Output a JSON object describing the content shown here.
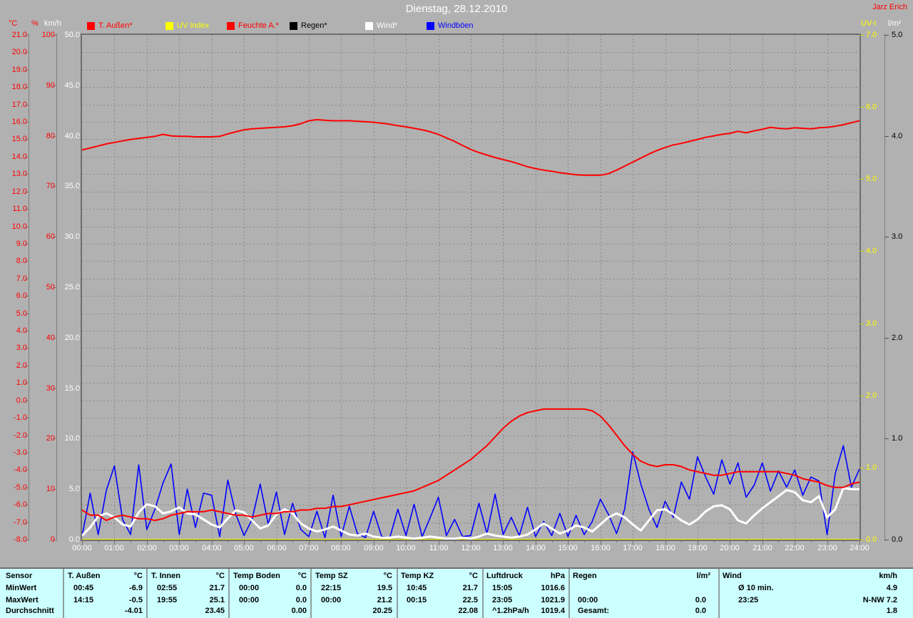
{
  "header": {
    "title": "Dienstag, 28.12.2010",
    "watermark": "Jarz Erich"
  },
  "legend": [
    {
      "label": "T. Außen*",
      "color": "#ff0000"
    },
    {
      "label": "UV Index",
      "color": "#ffff00"
    },
    {
      "label": "Feuchte A.*",
      "color": "#ff0000"
    },
    {
      "label": "Regen*",
      "color": "#000000"
    },
    {
      "label": "Wind*",
      "color": "#ffffff"
    },
    {
      "label": "Windböen",
      "color": "#0000ff"
    }
  ],
  "chart_data": {
    "type": "line",
    "title": "Dienstag, 28.12.2010",
    "x_axis": {
      "start": 0,
      "end": 24,
      "major_step": 1,
      "minor_step": 0.5,
      "label_suffix": ":00",
      "label_color": "#ffffff"
    },
    "grid": {
      "on": true,
      "color": "#8a8a8a",
      "h_divisions": 29,
      "v_divisions": 24
    },
    "axes": {
      "temp": {
        "unit": "°C",
        "min": -8,
        "max": 21,
        "step": 1,
        "decimals": 1,
        "color": "#ff0000"
      },
      "pct": {
        "unit": "%",
        "min": 0,
        "max": 100,
        "step": 10,
        "decimals": 0,
        "color": "#ff0000"
      },
      "kmh": {
        "unit": "km/h",
        "min": 0,
        "max": 50,
        "step": 5,
        "decimals": 1,
        "color": "#ffffff"
      },
      "uv": {
        "unit": "UV-I",
        "min": 0,
        "max": 7,
        "step": 1,
        "decimals": 1,
        "color": "#ffff00"
      },
      "lm2": {
        "unit": "l/m²",
        "min": 0,
        "max": 5,
        "step": 1,
        "decimals": 1,
        "color": "#000000"
      }
    },
    "series": [
      {
        "name": "Regen",
        "axis": "lm2",
        "color": "#000000",
        "width": 1.5,
        "start": 0,
        "step": 24,
        "values": [
          0,
          0
        ]
      },
      {
        "name": "UV Index",
        "axis": "uv",
        "color": "#ffff00",
        "width": 2,
        "start": 0,
        "step": 24,
        "values": [
          0,
          0
        ]
      },
      {
        "name": "Windböen",
        "axis": "kmh",
        "color": "#0000ff",
        "width": 1.6,
        "start": 0,
        "step": 0.25,
        "values": [
          0.3,
          4.6,
          0.5,
          4.9,
          7.3,
          2.0,
          0.5,
          7.4,
          1.0,
          3.0,
          5.6,
          7.5,
          0.5,
          5.0,
          1.2,
          4.6,
          4.4,
          0.3,
          5.9,
          2.5,
          0.4,
          2.0,
          5.5,
          1.5,
          4.7,
          0.5,
          3.6,
          1.0,
          0.3,
          2.8,
          0.2,
          4.4,
          0.3,
          3.3,
          0.6,
          0.2,
          2.8,
          0.3,
          0.2,
          3.0,
          0.4,
          3.5,
          0.3,
          2.2,
          4.2,
          0.4,
          2.0,
          0.3,
          0.4,
          3.6,
          0.6,
          4.5,
          0.5,
          2.2,
          0.4,
          3.2,
          0.3,
          1.8,
          0.4,
          2.6,
          0.3,
          2.4,
          0.5,
          1.8,
          4.0,
          2.5,
          0.6,
          3.0,
          8.7,
          5.5,
          3.0,
          1.2,
          3.8,
          2.2,
          5.7,
          4.0,
          8.2,
          6.2,
          4.5,
          7.9,
          5.5,
          7.6,
          4.2,
          5.4,
          7.6,
          4.8,
          6.8,
          5.2,
          6.9,
          4.4,
          6.2,
          5.8,
          0.5,
          6.5,
          9.3,
          5.2,
          7.0
        ]
      },
      {
        "name": "Wind",
        "axis": "kmh",
        "color": "#ffffff",
        "width": 3,
        "start": 0,
        "step": 0.25,
        "values": [
          0.4,
          1.2,
          2.3,
          2.6,
          2.2,
          1.5,
          1.3,
          2.7,
          3.5,
          3.3,
          2.6,
          2.8,
          3.2,
          2.6,
          2.5,
          2.0,
          1.5,
          1.2,
          2.1,
          2.9,
          2.7,
          1.9,
          1.1,
          1.4,
          2.5,
          3.0,
          2.6,
          1.6,
          1.1,
          0.8,
          1.0,
          1.3,
          0.9,
          0.5,
          0.4,
          0.6,
          0.3,
          0.2,
          0.2,
          0.3,
          0.2,
          0.1,
          0.2,
          0.3,
          0.2,
          0.1,
          0.1,
          0.2,
          0.1,
          0.3,
          0.6,
          0.4,
          0.3,
          0.2,
          0.3,
          0.5,
          1.0,
          1.6,
          1.1,
          0.6,
          0.9,
          1.4,
          1.2,
          0.8,
          1.5,
          2.2,
          2.6,
          2.2,
          1.5,
          0.9,
          1.9,
          2.9,
          3.0,
          2.5,
          1.9,
          1.5,
          2.0,
          2.8,
          3.3,
          3.4,
          3.0,
          1.9,
          1.6,
          2.4,
          3.1,
          3.7,
          4.3,
          4.9,
          4.7,
          3.9,
          3.7,
          4.3,
          2.2,
          3.0,
          5.1,
          5.0,
          5.0
        ]
      },
      {
        "name": "Feuchte A.",
        "axis": "pct",
        "color": "#ff0000",
        "width": 2,
        "start": 0,
        "step": 0.25,
        "values": [
          77.2,
          77.6,
          78.0,
          78.4,
          78.7,
          79.0,
          79.3,
          79.5,
          79.7,
          79.9,
          80.3,
          80.0,
          79.9,
          79.9,
          79.8,
          79.8,
          79.8,
          79.9,
          80.4,
          80.8,
          81.2,
          81.4,
          81.5,
          81.6,
          81.7,
          81.8,
          82.0,
          82.4,
          83.0,
          83.2,
          83.1,
          83.0,
          83.0,
          83.0,
          82.9,
          82.8,
          82.7,
          82.5,
          82.3,
          82.0,
          81.8,
          81.5,
          81.2,
          80.8,
          80.3,
          79.6,
          78.9,
          78.1,
          77.3,
          76.7,
          76.2,
          75.7,
          75.3,
          74.9,
          74.4,
          73.9,
          73.5,
          73.2,
          73.0,
          72.7,
          72.5,
          72.3,
          72.2,
          72.2,
          72.2,
          72.5,
          73.2,
          74.0,
          74.8,
          75.6,
          76.4,
          77.1,
          77.7,
          78.2,
          78.5,
          78.9,
          79.3,
          79.7,
          80.0,
          80.3,
          80.5,
          80.9,
          80.6,
          81.0,
          81.3,
          81.7,
          81.5,
          81.4,
          81.6,
          81.5,
          81.4,
          81.6,
          81.7,
          81.9,
          82.2,
          82.6,
          83.0
        ]
      },
      {
        "name": "T. Außen",
        "axis": "temp",
        "color": "#ff0000",
        "width": 2,
        "start": 0,
        "step": 0.25,
        "values": [
          -6.3,
          -6.6,
          -6.6,
          -6.9,
          -6.7,
          -6.6,
          -6.7,
          -6.8,
          -6.8,
          -6.9,
          -6.8,
          -6.6,
          -6.5,
          -6.4,
          -6.4,
          -6.4,
          -6.3,
          -6.4,
          -6.5,
          -6.6,
          -6.6,
          -6.7,
          -6.6,
          -6.5,
          -6.5,
          -6.4,
          -6.4,
          -6.3,
          -6.3,
          -6.2,
          -6.2,
          -6.1,
          -6.1,
          -6.0,
          -5.9,
          -5.8,
          -5.7,
          -5.6,
          -5.5,
          -5.4,
          -5.3,
          -5.2,
          -5.0,
          -4.8,
          -4.6,
          -4.3,
          -4.0,
          -3.7,
          -3.4,
          -3.0,
          -2.6,
          -2.1,
          -1.6,
          -1.2,
          -0.9,
          -0.7,
          -0.6,
          -0.5,
          -0.5,
          -0.5,
          -0.5,
          -0.5,
          -0.5,
          -0.6,
          -0.9,
          -1.4,
          -2.0,
          -2.6,
          -3.1,
          -3.5,
          -3.7,
          -3.8,
          -3.7,
          -3.7,
          -3.8,
          -4.0,
          -4.1,
          -4.2,
          -4.3,
          -4.3,
          -4.2,
          -4.1,
          -4.1,
          -4.1,
          -4.1,
          -4.1,
          -4.1,
          -4.2,
          -4.3,
          -4.5,
          -4.6,
          -4.7,
          -4.9,
          -5.0,
          -5.0,
          -4.8,
          -4.7
        ]
      }
    ]
  },
  "table": {
    "row_headers": [
      "Sensor",
      "MinWert",
      "MaxWert",
      "Durchschnitt"
    ],
    "columns": [
      {
        "name": "T. Außen",
        "unit": "°C",
        "min": [
          "00:45",
          "-6.9"
        ],
        "max": [
          "14:15",
          "-0.5"
        ],
        "avg": [
          "",
          "-4.01"
        ]
      },
      {
        "name": "T. Innen",
        "unit": "°C",
        "min": [
          "02:55",
          "21.7"
        ],
        "max": [
          "19:55",
          "25.1"
        ],
        "avg": [
          "",
          "23.45"
        ]
      },
      {
        "name": "Temp Boden",
        "unit": "°C",
        "min": [
          "00:00",
          "0.0"
        ],
        "max": [
          "00:00",
          "0.0"
        ],
        "avg": [
          "",
          "0.00"
        ]
      },
      {
        "name": "Temp SZ",
        "unit": "°C",
        "min": [
          "22:15",
          "19.5"
        ],
        "max": [
          "00:00",
          "21.2"
        ],
        "avg": [
          "",
          "20.25"
        ]
      },
      {
        "name": "Temp KZ",
        "unit": "°C",
        "min": [
          "10:45",
          "21.7"
        ],
        "max": [
          "00:15",
          "22.5"
        ],
        "avg": [
          "",
          "22.08"
        ]
      },
      {
        "name": "Luftdruck",
        "unit": "hPa",
        "min": [
          "15:05",
          "1016.6"
        ],
        "max": [
          "23:05",
          "1021.9"
        ],
        "avg": [
          "^1.2hPa/h",
          "1019.4"
        ]
      },
      {
        "name": "Regen",
        "unit": "l/m²",
        "min": [
          "",
          ""
        ],
        "max": [
          "00:00",
          "0.0"
        ],
        "avg": [
          "Gesamt:",
          "0.0"
        ]
      },
      {
        "name": "Wind",
        "unit": "km/h",
        "min": [
          "Ø 10 min.",
          "4.9"
        ],
        "max": [
          "23:25",
          "N-NW 7.2"
        ],
        "avg": [
          "",
          "1.8"
        ]
      }
    ]
  }
}
